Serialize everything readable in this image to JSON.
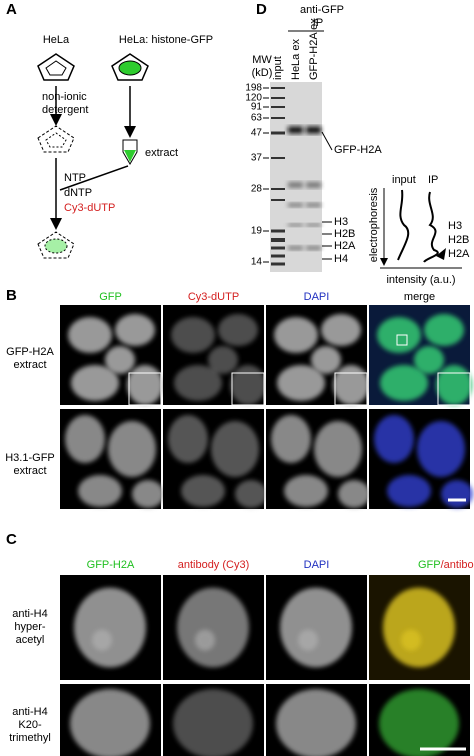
{
  "panel_a": {
    "letter": "A",
    "cell_left": "HeLa",
    "cell_right": "HeLa: histone-GFP",
    "step_left": [
      "non-ionic",
      "detergent"
    ],
    "step_right": "extract",
    "reagents": [
      "NTP",
      "dNTP",
      "Cy3-dUTP"
    ]
  },
  "panel_d": {
    "letter": "D",
    "ip_header": [
      "anti-GFP",
      "IP"
    ],
    "mw_label": [
      "MW",
      "(kD)"
    ],
    "lanes": [
      "input",
      "HeLa ex",
      "GFP-H2A ex"
    ],
    "markers": [
      "198",
      "120",
      "91",
      "63",
      "47",
      "37",
      "28",
      "19",
      "14"
    ],
    "band_labels": [
      "GFP-H2A",
      "H3",
      "H2B",
      "H2A",
      "H4"
    ],
    "schematic": {
      "columns": [
        "input",
        "IP"
      ],
      "y_axis": "electrophoresis",
      "x_axis": "intensity (a.u.)",
      "peaks": [
        "H3",
        "H2B",
        "H2A"
      ]
    }
  },
  "panel_b": {
    "letter": "B",
    "columns": [
      "GFP",
      "Cy3-dUTP",
      "DAPI",
      "merge"
    ],
    "rows": [
      [
        "GFP-H2A",
        "extract"
      ],
      [
        "H3.1-GFP",
        "extract"
      ]
    ]
  },
  "panel_c": {
    "letter": "C",
    "columns": [
      "GFP-H2A",
      "antibody (Cy3)",
      "DAPI"
    ],
    "merge_column": [
      "GFP",
      "/antibody"
    ],
    "rows": [
      [
        "anti-H4",
        "hyper-",
        "acetyl"
      ],
      [
        "anti-H4",
        "K20-",
        "trimethyl"
      ]
    ]
  }
}
